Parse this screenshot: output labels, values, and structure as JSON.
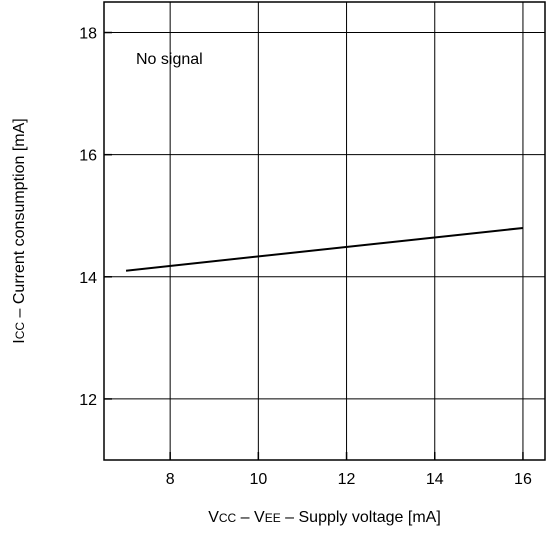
{
  "chart_data": {
    "type": "line",
    "title": "",
    "xlabel_parts": [
      {
        "text": "V",
        "small": false
      },
      {
        "text": "CC",
        "small": true
      },
      {
        "text": " – V",
        "small": false
      },
      {
        "text": "EE",
        "small": true
      },
      {
        "text": " – Supply voltage [mA]",
        "small": false
      }
    ],
    "ylabel_parts": [
      {
        "text": "I",
        "small": false
      },
      {
        "text": "CC",
        "small": true
      },
      {
        "text": " – Current consumption [mA]",
        "small": false
      }
    ],
    "xlim": [
      6.5,
      16.5
    ],
    "ylim": [
      11,
      18.5
    ],
    "xticks": [
      8,
      10,
      12,
      14,
      16
    ],
    "yticks": [
      12,
      14,
      16,
      18
    ],
    "grid": true,
    "annotation": "No signal",
    "series": [
      {
        "x": [
          7,
          16
        ],
        "y": [
          14.1,
          14.8
        ]
      }
    ],
    "line_color": "#000000"
  }
}
